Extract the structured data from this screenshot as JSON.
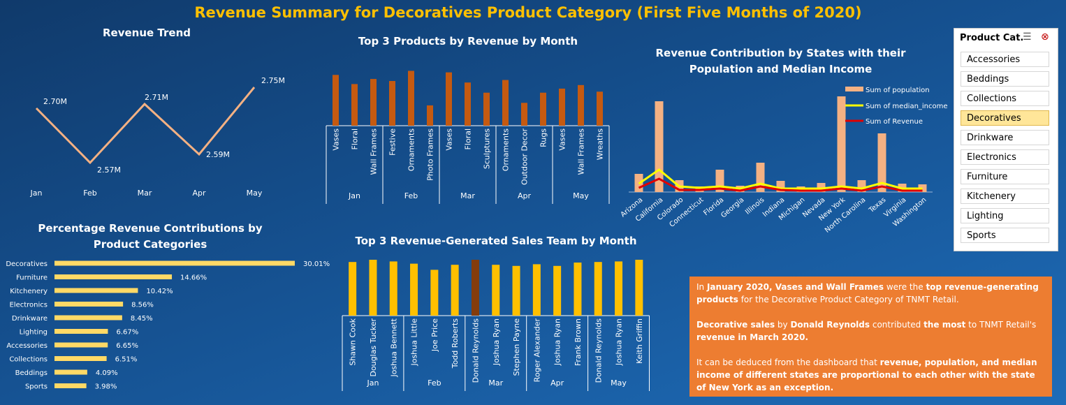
{
  "title": "Revenue Summary for Decoratives Product Category (First Five Months of 2020)",
  "slicer": {
    "header": "Product Cat...",
    "items": [
      "Accessories",
      "Beddings",
      "Collections",
      "Decoratives",
      "Drinkware",
      "Electronics",
      "Furniture",
      "Kitchenery",
      "Lighting",
      "Sports"
    ],
    "selected": "Decoratives"
  },
  "insight": {
    "p1": [
      {
        "t": "In ",
        "b": false
      },
      {
        "t": "January 2020, Vases and Wall Frames",
        "b": true
      },
      {
        "t": " were the ",
        "b": false
      },
      {
        "t": "top revenue-generating products",
        "b": true
      },
      {
        "t": " for the Decorative Product Category of TNMT Retail.",
        "b": false
      }
    ],
    "p2": [
      {
        "t": "Decorative sales",
        "b": true
      },
      {
        "t": " by ",
        "b": false
      },
      {
        "t": "Donald Reynolds",
        "b": true
      },
      {
        "t": " contributed ",
        "b": false
      },
      {
        "t": "the most",
        "b": true
      },
      {
        "t": " to TNMT Retail's ",
        "b": false
      },
      {
        "t": "revenue in March 2020.",
        "b": true
      }
    ],
    "p3": [
      {
        "t": "It can be deduced from the dashboard that ",
        "b": false
      },
      {
        "t": "revenue, population, and median income of different states are proportional to each other with the state of New York as an exception.",
        "b": true
      }
    ]
  },
  "colors": {
    "title": "#ffc000",
    "trend_line": "#f4b183",
    "product_bar": "#c55a11",
    "pct_bar": "#ffd966",
    "team_bar": "#ffc000",
    "team_highlight": "#843c0c",
    "population": "#f4b183",
    "median_income": "#ffff00",
    "revenue_line": "#e00000",
    "insight_bg": "#ed7d31"
  },
  "chart_data": [
    {
      "id": "trend",
      "type": "line",
      "title": "Revenue Trend",
      "categories": [
        "Jan",
        "Feb",
        "Mar",
        "Apr",
        "May"
      ],
      "values": [
        2.7,
        2.57,
        2.71,
        2.59,
        2.75
      ],
      "labels": [
        "2.70M",
        "2.57M",
        "2.71M",
        "2.59M",
        "2.75M"
      ]
    },
    {
      "id": "products",
      "type": "bar",
      "title": "Top 3 Products by Revenue by Month",
      "groups": [
        {
          "name": "Jan",
          "categories": [
            "Vases",
            "Floral",
            "Wall Frames"
          ],
          "values": [
            100,
            82,
            92
          ]
        },
        {
          "name": "Feb",
          "categories": [
            "Festive",
            "Ornaments",
            "Photo Frames"
          ],
          "values": [
            88,
            108,
            40
          ]
        },
        {
          "name": "Mar",
          "categories": [
            "Vases",
            "Floral",
            "Sculptures"
          ],
          "values": [
            105,
            85,
            65
          ]
        },
        {
          "name": "Apr",
          "categories": [
            "Ornaments",
            "Outdoor Decor",
            "Rugs"
          ],
          "values": [
            90,
            45,
            65
          ]
        },
        {
          "name": "May",
          "categories": [
            "Vases",
            "Wall Frames",
            "Wreaths"
          ],
          "values": [
            73,
            80,
            67
          ]
        }
      ]
    },
    {
      "id": "states",
      "type": "bar",
      "title": "Revenue Contribution by States with their Population and Median Income",
      "categories": [
        "Arizona",
        "California",
        "Colorado",
        "Connecticut",
        "Florida",
        "Georgia",
        "Illinois",
        "Indiana",
        "Michigan",
        "Nevada",
        "New York",
        "North Carolina",
        "Texas",
        "Virginia",
        "Washington"
      ],
      "series": [
        {
          "name": "Sum of population",
          "type": "bar",
          "values": [
            26,
            130,
            17,
            8,
            32,
            9,
            42,
            16,
            8,
            13,
            137,
            17,
            84,
            12,
            11
          ]
        },
        {
          "name": "Sum of median_income",
          "type": "line",
          "values": [
            12,
            32,
            8,
            6,
            8,
            5,
            12,
            5,
            5,
            5,
            8,
            5,
            13,
            5,
            5
          ]
        },
        {
          "name": "Sum of Revenue",
          "type": "line",
          "values": [
            6,
            19,
            3,
            3,
            5,
            2,
            8,
            3,
            2,
            2,
            5,
            2,
            8,
            2,
            2
          ]
        }
      ]
    },
    {
      "id": "pct",
      "type": "bar",
      "title": "Percentage Revenue Contributions by Product Categories",
      "orientation": "horizontal",
      "categories": [
        "Decoratives",
        "Furniture",
        "Kitchenery",
        "Electronics",
        "Drinkware",
        "Lighting",
        "Accessories",
        "Collections",
        "Beddings",
        "Sports"
      ],
      "values": [
        30.01,
        14.66,
        10.42,
        8.56,
        8.45,
        6.67,
        6.65,
        6.51,
        4.09,
        3.98
      ],
      "labels": [
        "30.01%",
        "14.66%",
        "10.42%",
        "8.56%",
        "8.45%",
        "6.67%",
        "6.65%",
        "6.51%",
        "4.09%",
        "3.98%"
      ]
    },
    {
      "id": "teams",
      "type": "bar",
      "title": "Top 3 Revenue-Generated Sales Team by Month",
      "highlight": "Donald Reynolds (Mar)",
      "groups": [
        {
          "name": "Jan",
          "categories": [
            "Shawn Cook",
            "Douglas Tucker",
            "Joshua Bennett"
          ],
          "values": [
            96,
            100,
            97
          ]
        },
        {
          "name": "Feb",
          "categories": [
            "Joshua Little",
            "Joe Price",
            "Todd Roberts"
          ],
          "values": [
            93,
            82,
            91
          ]
        },
        {
          "name": "Mar",
          "categories": [
            "Donald Reynolds",
            "Joshua Ryan",
            "Stephen Payne"
          ],
          "values": [
            100,
            91,
            89
          ]
        },
        {
          "name": "Apr",
          "categories": [
            "Roger Alexander",
            "Joshua Ryan",
            "Frank Brown"
          ],
          "values": [
            92,
            89,
            95
          ]
        },
        {
          "name": "May",
          "categories": [
            "Donald Reynolds",
            "Joshua Ryan",
            "Keith Griffin"
          ],
          "values": [
            96,
            97,
            100
          ]
        }
      ]
    }
  ]
}
